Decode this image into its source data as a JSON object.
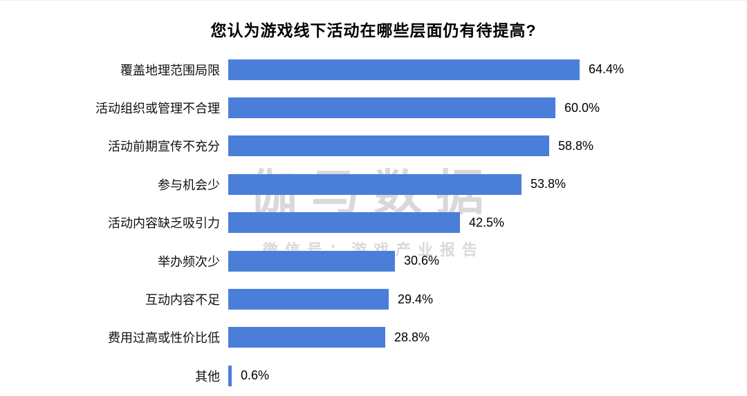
{
  "chart_data": {
    "type": "bar",
    "orientation": "horizontal",
    "title": "您认为游戏线下活动在哪些层面仍有待提高?",
    "categories": [
      "覆盖地理范围局限",
      "活动组织或管理不合理",
      "活动前期宣传不充分",
      "参与机会少",
      "活动内容缺乏吸引力",
      "举办频次少",
      "互动内容不足",
      "费用过高或性价比低",
      "其他"
    ],
    "values": [
      64.4,
      60.0,
      58.8,
      53.8,
      42.5,
      30.6,
      29.4,
      28.8,
      0.6
    ],
    "value_labels": [
      "64.4%",
      "60.0%",
      "58.8%",
      "53.8%",
      "42.5%",
      "30.6%",
      "29.4%",
      "28.8%",
      "0.6%"
    ],
    "xlim": [
      0,
      70
    ],
    "bar_color": "#4b7ed9",
    "grid": false,
    "legend": false
  },
  "watermark": {
    "line1": "伽马数据",
    "line2": "微信号：游戏产业报告"
  }
}
